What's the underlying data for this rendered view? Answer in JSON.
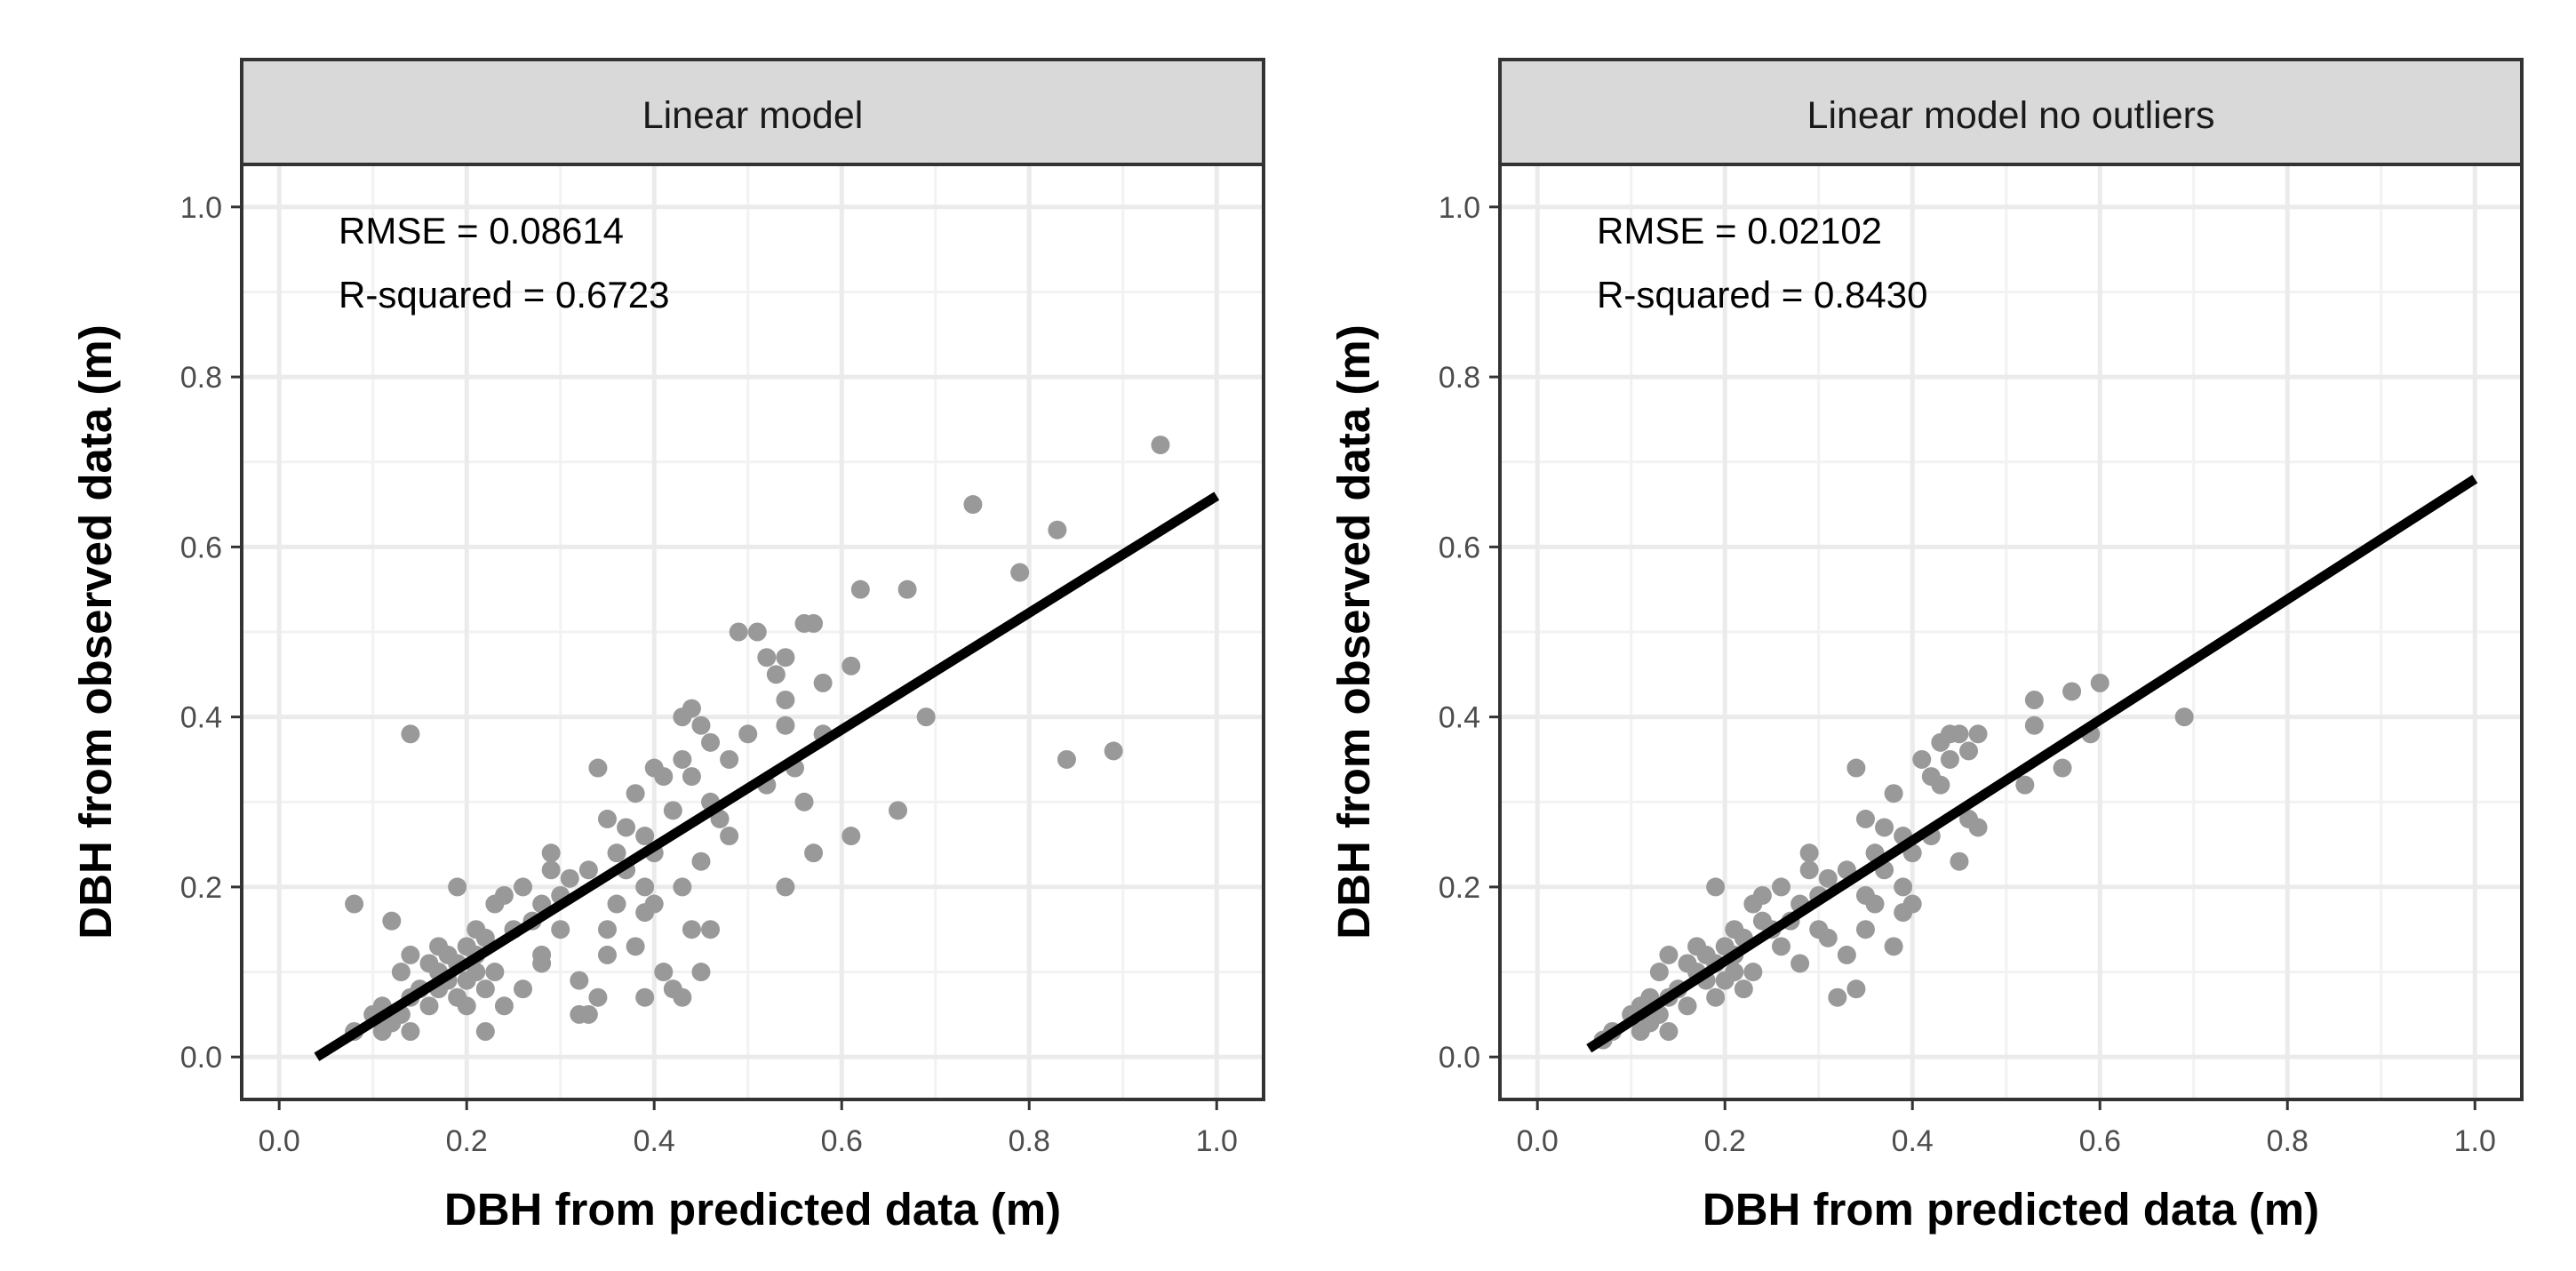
{
  "colors": {
    "panel_background": "#ffffff",
    "grid_major": "#ebebeb",
    "grid_minor": "#f2f2f2",
    "panel_border": "#333333",
    "strip_fill": "#d9d9d9",
    "point": "#999999",
    "fit_line": "#000000",
    "axis_text": "#4d4d4d",
    "label_text": "#1a1a1a"
  },
  "chart_data": [
    {
      "type": "scatter",
      "panel_title": "Linear model",
      "xlabel": "DBH from predicted data (m)",
      "ylabel": "DBH from observed data (m)",
      "xlim": [
        -0.04,
        1.05
      ],
      "ylim": [
        -0.05,
        1.05
      ],
      "x_ticks": [
        0.0,
        0.2,
        0.4,
        0.6,
        0.8,
        1.0
      ],
      "x_tick_labels": [
        "0.0",
        "0.2",
        "0.4",
        "0.6",
        "0.8",
        "1.0"
      ],
      "y_ticks": [
        0.0,
        0.2,
        0.4,
        0.6,
        0.8,
        1.0
      ],
      "y_tick_labels": [
        "0.0",
        "0.2",
        "0.4",
        "0.6",
        "0.8",
        "1.0"
      ],
      "annotations": [
        "RMSE = 0.08614",
        "R-squared = 0.6723"
      ],
      "fit_line": {
        "x": [
          0.04,
          1.0
        ],
        "y": [
          0.0,
          0.66
        ]
      },
      "points": [
        [
          0.08,
          0.18
        ],
        [
          0.08,
          0.03
        ],
        [
          0.1,
          0.05
        ],
        [
          0.11,
          0.03
        ],
        [
          0.11,
          0.06
        ],
        [
          0.12,
          0.04
        ],
        [
          0.12,
          0.16
        ],
        [
          0.13,
          0.1
        ],
        [
          0.13,
          0.05
        ],
        [
          0.14,
          0.12
        ],
        [
          0.14,
          0.38
        ],
        [
          0.14,
          0.03
        ],
        [
          0.14,
          0.07
        ],
        [
          0.15,
          0.08
        ],
        [
          0.16,
          0.06
        ],
        [
          0.17,
          0.1
        ],
        [
          0.17,
          0.13
        ],
        [
          0.18,
          0.09
        ],
        [
          0.18,
          0.12
        ],
        [
          0.19,
          0.07
        ],
        [
          0.19,
          0.11
        ],
        [
          0.19,
          0.2
        ],
        [
          0.2,
          0.09
        ],
        [
          0.2,
          0.13
        ],
        [
          0.21,
          0.1
        ],
        [
          0.21,
          0.12
        ],
        [
          0.22,
          0.08
        ],
        [
          0.22,
          0.03
        ],
        [
          0.22,
          0.14
        ],
        [
          0.23,
          0.18
        ],
        [
          0.23,
          0.1
        ],
        [
          0.24,
          0.19
        ],
        [
          0.24,
          0.06
        ],
        [
          0.25,
          0.15
        ],
        [
          0.26,
          0.08
        ],
        [
          0.26,
          0.2
        ],
        [
          0.27,
          0.16
        ],
        [
          0.28,
          0.18
        ],
        [
          0.28,
          0.11
        ],
        [
          0.29,
          0.22
        ],
        [
          0.29,
          0.24
        ],
        [
          0.3,
          0.19
        ],
        [
          0.3,
          0.15
        ],
        [
          0.31,
          0.21
        ],
        [
          0.32,
          0.09
        ],
        [
          0.32,
          0.05
        ],
        [
          0.33,
          0.22
        ],
        [
          0.33,
          0.05
        ],
        [
          0.34,
          0.34
        ],
        [
          0.34,
          0.07
        ],
        [
          0.35,
          0.28
        ],
        [
          0.35,
          0.15
        ],
        [
          0.35,
          0.12
        ],
        [
          0.36,
          0.24
        ],
        [
          0.36,
          0.18
        ],
        [
          0.37,
          0.27
        ],
        [
          0.37,
          0.22
        ],
        [
          0.38,
          0.31
        ],
        [
          0.38,
          0.13
        ],
        [
          0.39,
          0.26
        ],
        [
          0.39,
          0.2
        ],
        [
          0.39,
          0.17
        ],
        [
          0.39,
          0.07
        ],
        [
          0.4,
          0.34
        ],
        [
          0.4,
          0.24
        ],
        [
          0.4,
          0.18
        ],
        [
          0.41,
          0.33
        ],
        [
          0.41,
          0.1
        ],
        [
          0.42,
          0.08
        ],
        [
          0.42,
          0.29
        ],
        [
          0.43,
          0.4
        ],
        [
          0.43,
          0.35
        ],
        [
          0.43,
          0.2
        ],
        [
          0.43,
          0.07
        ],
        [
          0.44,
          0.41
        ],
        [
          0.44,
          0.33
        ],
        [
          0.44,
          0.15
        ],
        [
          0.45,
          0.39
        ],
        [
          0.45,
          0.1
        ],
        [
          0.45,
          0.23
        ],
        [
          0.46,
          0.3
        ],
        [
          0.46,
          0.37
        ],
        [
          0.46,
          0.15
        ],
        [
          0.47,
          0.28
        ],
        [
          0.48,
          0.35
        ],
        [
          0.48,
          0.26
        ],
        [
          0.49,
          0.5
        ],
        [
          0.5,
          0.38
        ],
        [
          0.51,
          0.5
        ],
        [
          0.52,
          0.47
        ],
        [
          0.52,
          0.32
        ],
        [
          0.53,
          0.45
        ],
        [
          0.54,
          0.47
        ],
        [
          0.54,
          0.42
        ],
        [
          0.54,
          0.39
        ],
        [
          0.55,
          0.34
        ],
        [
          0.56,
          0.51
        ],
        [
          0.57,
          0.51
        ],
        [
          0.56,
          0.3
        ],
        [
          0.57,
          0.24
        ],
        [
          0.58,
          0.44
        ],
        [
          0.58,
          0.38
        ],
        [
          0.61,
          0.46
        ],
        [
          0.61,
          0.26
        ],
        [
          0.62,
          0.55
        ],
        [
          0.66,
          0.29
        ],
        [
          0.67,
          0.55
        ],
        [
          0.69,
          0.4
        ],
        [
          0.74,
          0.65
        ],
        [
          0.79,
          0.57
        ],
        [
          0.83,
          0.62
        ],
        [
          0.84,
          0.35
        ],
        [
          0.89,
          0.36
        ],
        [
          0.94,
          0.72
        ],
        [
          0.54,
          0.2
        ],
        [
          0.28,
          0.12
        ],
        [
          0.21,
          0.15
        ],
        [
          0.17,
          0.08
        ],
        [
          0.16,
          0.11
        ],
        [
          0.2,
          0.06
        ]
      ]
    },
    {
      "type": "scatter",
      "panel_title": "Linear model no outliers",
      "xlabel": "DBH from predicted data (m)",
      "ylabel": "DBH from observed data (m)",
      "xlim": [
        -0.04,
        1.05
      ],
      "ylim": [
        -0.05,
        1.05
      ],
      "x_ticks": [
        0.0,
        0.2,
        0.4,
        0.6,
        0.8,
        1.0
      ],
      "x_tick_labels": [
        "0.0",
        "0.2",
        "0.4",
        "0.6",
        "0.8",
        "1.0"
      ],
      "y_ticks": [
        0.0,
        0.2,
        0.4,
        0.6,
        0.8,
        1.0
      ],
      "y_tick_labels": [
        "0.0",
        "0.2",
        "0.4",
        "0.6",
        "0.8",
        "1.0"
      ],
      "annotations": [
        "RMSE = 0.02102",
        "R-squared = 0.8430"
      ],
      "fit_line": {
        "x": [
          0.055,
          1.0
        ],
        "y": [
          0.01,
          0.68
        ]
      },
      "points": [
        [
          0.07,
          0.02
        ],
        [
          0.08,
          0.03
        ],
        [
          0.1,
          0.05
        ],
        [
          0.11,
          0.03
        ],
        [
          0.11,
          0.06
        ],
        [
          0.12,
          0.04
        ],
        [
          0.12,
          0.07
        ],
        [
          0.13,
          0.1
        ],
        [
          0.13,
          0.05
        ],
        [
          0.14,
          0.12
        ],
        [
          0.14,
          0.03
        ],
        [
          0.14,
          0.07
        ],
        [
          0.15,
          0.08
        ],
        [
          0.16,
          0.06
        ],
        [
          0.16,
          0.11
        ],
        [
          0.17,
          0.1
        ],
        [
          0.17,
          0.13
        ],
        [
          0.18,
          0.09
        ],
        [
          0.18,
          0.12
        ],
        [
          0.19,
          0.07
        ],
        [
          0.19,
          0.11
        ],
        [
          0.19,
          0.2
        ],
        [
          0.2,
          0.09
        ],
        [
          0.2,
          0.13
        ],
        [
          0.21,
          0.1
        ],
        [
          0.21,
          0.12
        ],
        [
          0.22,
          0.08
        ],
        [
          0.22,
          0.14
        ],
        [
          0.23,
          0.18
        ],
        [
          0.23,
          0.1
        ],
        [
          0.24,
          0.19
        ],
        [
          0.24,
          0.16
        ],
        [
          0.25,
          0.15
        ],
        [
          0.26,
          0.2
        ],
        [
          0.27,
          0.16
        ],
        [
          0.28,
          0.18
        ],
        [
          0.28,
          0.11
        ],
        [
          0.29,
          0.22
        ],
        [
          0.29,
          0.24
        ],
        [
          0.3,
          0.19
        ],
        [
          0.3,
          0.15
        ],
        [
          0.31,
          0.21
        ],
        [
          0.32,
          0.07
        ],
        [
          0.33,
          0.22
        ],
        [
          0.33,
          0.12
        ],
        [
          0.34,
          0.34
        ],
        [
          0.34,
          0.08
        ],
        [
          0.35,
          0.28
        ],
        [
          0.35,
          0.15
        ],
        [
          0.36,
          0.24
        ],
        [
          0.36,
          0.18
        ],
        [
          0.37,
          0.27
        ],
        [
          0.37,
          0.22
        ],
        [
          0.38,
          0.31
        ],
        [
          0.38,
          0.13
        ],
        [
          0.39,
          0.26
        ],
        [
          0.39,
          0.2
        ],
        [
          0.39,
          0.17
        ],
        [
          0.4,
          0.24
        ],
        [
          0.4,
          0.18
        ],
        [
          0.41,
          0.35
        ],
        [
          0.42,
          0.33
        ],
        [
          0.42,
          0.26
        ],
        [
          0.43,
          0.37
        ],
        [
          0.43,
          0.32
        ],
        [
          0.44,
          0.38
        ],
        [
          0.44,
          0.35
        ],
        [
          0.45,
          0.38
        ],
        [
          0.45,
          0.23
        ],
        [
          0.46,
          0.36
        ],
        [
          0.46,
          0.28
        ],
        [
          0.47,
          0.38
        ],
        [
          0.47,
          0.27
        ],
        [
          0.52,
          0.32
        ],
        [
          0.53,
          0.42
        ],
        [
          0.53,
          0.39
        ],
        [
          0.56,
          0.34
        ],
        [
          0.57,
          0.43
        ],
        [
          0.59,
          0.38
        ],
        [
          0.6,
          0.44
        ],
        [
          0.69,
          0.4
        ],
        [
          0.26,
          0.13
        ],
        [
          0.21,
          0.15
        ],
        [
          0.31,
          0.14
        ],
        [
          0.35,
          0.19
        ]
      ]
    }
  ]
}
